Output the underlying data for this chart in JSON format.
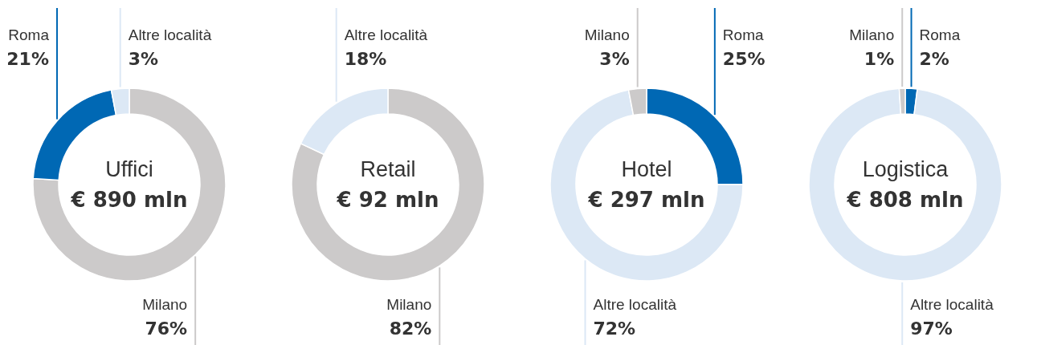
{
  "chart_data": [
    {
      "type": "donut",
      "title": "Uffici",
      "subtitle": "€ 890 mln",
      "categories": [
        "Milano",
        "Roma",
        "Altre località"
      ],
      "values": [
        76,
        21,
        3
      ],
      "value_labels": [
        "76%",
        "21%",
        "3%"
      ],
      "colors": [
        "#cccaca",
        "#0068b4",
        "#dce8f5"
      ]
    },
    {
      "type": "donut",
      "title": "Retail",
      "subtitle": "€ 92 mln",
      "categories": [
        "Milano",
        "Altre località"
      ],
      "values": [
        82,
        18
      ],
      "value_labels": [
        "82%",
        "18%"
      ],
      "colors": [
        "#cccaca",
        "#dce8f5"
      ]
    },
    {
      "type": "donut",
      "title": "Hotel",
      "subtitle": "€ 297 mln",
      "categories": [
        "Roma",
        "Altre località",
        "Milano"
      ],
      "values": [
        25,
        72,
        3
      ],
      "value_labels": [
        "25%",
        "72%",
        "3%"
      ],
      "colors": [
        "#0068b4",
        "#dce8f5",
        "#cccaca"
      ]
    },
    {
      "type": "donut",
      "title": "Logistica",
      "subtitle": "€ 808 mln",
      "categories": [
        "Roma",
        "Altre località",
        "Milano"
      ],
      "values": [
        2,
        97,
        1
      ],
      "value_labels": [
        "2%",
        "97%",
        "1%"
      ],
      "colors": [
        "#0068b4",
        "#dce8f5",
        "#cccaca"
      ]
    }
  ]
}
